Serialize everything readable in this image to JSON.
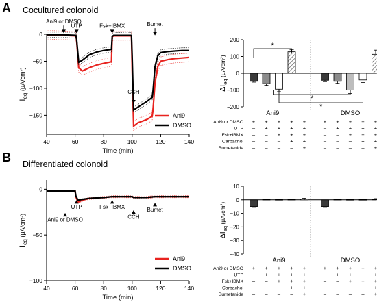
{
  "figure": {
    "panel_a_letter": "A",
    "panel_b_letter": "B",
    "panel_a_title": "Cocultured colonoid",
    "panel_b_title": "Differentiated colonoid",
    "condition_labels": [
      "Ani9 or DMSO",
      "UTP",
      "Fsk+IBMX",
      "Carbachol",
      "Bumetanide"
    ],
    "cond_matrix": [
      [
        "+",
        "+",
        "+",
        "+",
        "+",
        "",
        "+",
        "+",
        "+",
        "+",
        "+"
      ],
      [
        "–",
        "+",
        "+",
        "+",
        "+",
        "",
        "–",
        "+",
        "+",
        "+",
        "+"
      ],
      [
        "–",
        "–",
        "+",
        "+",
        "+",
        "",
        "–",
        "–",
        "+",
        "+",
        "+"
      ],
      [
        "–",
        "–",
        "–",
        "+",
        "+",
        "",
        "–",
        "–",
        "–",
        "+",
        "+"
      ],
      [
        "–",
        "–",
        "–",
        "–",
        "+",
        "",
        "–",
        "–",
        "–",
        "–",
        "+"
      ]
    ],
    "colors": {
      "ani9": "#e8231f",
      "dmso": "#000000",
      "bar_light_gray": "#bdbdbd",
      "bar_dark": "#3a3a3a"
    }
  },
  "chart_data": [
    {
      "id": "A_trace",
      "type": "line",
      "xlabel": "Time (min)",
      "ylabel_main": "I",
      "ylabel_sub": "eq",
      "ylabel_unit": "(μA/cm²)",
      "xlim": [
        40,
        140
      ],
      "ylim": [
        -185,
        0
      ],
      "x_ticks": [
        40,
        60,
        80,
        100,
        120,
        140
      ],
      "y_ticks": [
        0,
        -50,
        -100,
        -150
      ],
      "legend": [
        "Ani9",
        "DMSO"
      ],
      "legend_position": "bottom-right",
      "annotations": [
        {
          "text": "Ani9 or DMSO",
          "x": 52,
          "y_text": 20,
          "y_tip": 2
        },
        {
          "text": "UTP",
          "x": 61,
          "y_text": 12,
          "y_tip": 2
        },
        {
          "text": "Fsk+IBMX",
          "x": 86,
          "y_text": 12,
          "y_tip": 2
        },
        {
          "text": "CCH",
          "x": 101,
          "y_text": -110,
          "y_tip": -128
        },
        {
          "text": "Bumet",
          "x": 116,
          "y_text": 15,
          "y_tip": -2
        }
      ],
      "series": [
        {
          "name": "Ani9",
          "color": "#e8231f",
          "error": 8,
          "x": [
            40,
            52,
            60.5,
            61,
            62.5,
            65,
            70,
            75,
            80,
            85.5,
            86,
            87,
            90,
            95,
            99.5,
            100,
            101,
            104,
            110,
            114,
            114.6,
            116,
            118,
            120,
            125,
            130,
            135,
            140
          ],
          "y": [
            -1,
            -2,
            -3,
            -10,
            -62,
            -68,
            -62,
            -57,
            -54,
            -51,
            -5,
            -3,
            -3,
            -3,
            -3,
            -65,
            -170,
            -164,
            -158,
            -152,
            -140,
            -90,
            -60,
            -50,
            -47,
            -45,
            -44,
            -43
          ]
        },
        {
          "name": "DMSO",
          "color": "#000000",
          "error": 5,
          "x": [
            40,
            52,
            60.5,
            61,
            62.5,
            65,
            70,
            75,
            80,
            85.5,
            86,
            87,
            90,
            95,
            99.5,
            100,
            101,
            104,
            110,
            114,
            114.6,
            116,
            118,
            120,
            125,
            130,
            135,
            140
          ],
          "y": [
            -1,
            -1,
            -2,
            -8,
            -52,
            -48,
            -38,
            -33,
            -30,
            -28,
            -4,
            -2,
            -2,
            -2,
            -2,
            -40,
            -140,
            -135,
            -125,
            -117,
            -105,
            -60,
            -40,
            -34,
            -32,
            -31,
            -30,
            -30
          ]
        }
      ]
    },
    {
      "id": "A_bar",
      "type": "bar",
      "ylabel_main": "ΔI",
      "ylabel_sub": "eq",
      "ylabel_unit": "(μA/cm²)",
      "ylim": [
        -200,
        200
      ],
      "y_ticks": [
        200,
        100,
        0,
        -100,
        -200
      ],
      "group_labels": [
        "Ani9",
        "DMSO"
      ],
      "series": [
        {
          "name": "Ani9",
          "values": [
            -48,
            -62,
            -95,
            128
          ],
          "errors": [
            5,
            10,
            15,
            12
          ],
          "fills": [
            "dark",
            "gray",
            "white",
            "hatch"
          ]
        },
        {
          "name": "DMSO",
          "values": [
            -42,
            -48,
            -100,
            -40,
            113
          ],
          "errors": [
            8,
            12,
            20,
            15,
            25
          ],
          "fills": [
            "dark",
            "gray",
            "light",
            "white",
            "hatch"
          ]
        }
      ],
      "significance_marker": "*"
    },
    {
      "id": "B_trace",
      "type": "line",
      "xlabel": "Time (min)",
      "ylabel_main": "I",
      "ylabel_sub": "eq",
      "ylabel_unit": "(μA/cm²)",
      "xlim": [
        40,
        140
      ],
      "ylim": [
        -100,
        10
      ],
      "x_ticks": [
        40,
        60,
        80,
        100,
        120,
        140
      ],
      "y_ticks": [
        0,
        -50,
        -100
      ],
      "legend": [
        "Ani9",
        "DMSO"
      ],
      "legend_position": "bottom-right",
      "annotations": [
        {
          "text": "Ani9 or DMSO",
          "x": 53,
          "y_text": -33,
          "y_tip": -26
        },
        {
          "text": "UTP",
          "x": 61,
          "y_text": -19,
          "y_tip": -12
        },
        {
          "text": "Fsk+IBMX",
          "x": 86,
          "y_text": -19,
          "y_tip": -12
        },
        {
          "text": "CCH",
          "x": 101,
          "y_text": -30,
          "y_tip": -23
        },
        {
          "text": "Bumet",
          "x": 116,
          "y_text": -22,
          "y_tip": -15
        }
      ],
      "series": [
        {
          "name": "Ani9",
          "color": "#e8231f",
          "error": 1.2,
          "x": [
            40,
            60,
            60.5,
            62,
            65,
            70,
            80,
            86,
            90,
            100,
            101,
            110,
            116,
            120,
            130,
            140
          ],
          "y": [
            -2,
            -2,
            -8,
            -14,
            -12,
            -10,
            -9,
            -8,
            -8,
            -8,
            -9,
            -9,
            -8,
            -8,
            -8,
            -8
          ]
        },
        {
          "name": "DMSO",
          "color": "#000000",
          "error": 0.6,
          "x": [
            40,
            60,
            60.5,
            62,
            65,
            70,
            80,
            86,
            90,
            100,
            101,
            110,
            116,
            120,
            130,
            140
          ],
          "y": [
            -2,
            -2,
            -7,
            -12,
            -11,
            -10,
            -9,
            -8,
            -8,
            -8,
            -9,
            -9,
            -8,
            -8,
            -8,
            -8
          ]
        }
      ]
    },
    {
      "id": "B_bar",
      "type": "bar",
      "ylabel_main": "ΔI",
      "ylabel_sub": "eq",
      "ylabel_unit": "(μA/cm²)",
      "ylim": [
        -40,
        10
      ],
      "y_ticks": [
        10,
        0,
        -10,
        -20,
        -30,
        -40
      ],
      "group_labels": [
        "Ani9",
        "DMSO"
      ],
      "series": [
        {
          "name": "Ani9",
          "values": [
            -5,
            0.3,
            0.2,
            0.3,
            0.6
          ],
          "errors": [
            0.6,
            0.3,
            0.3,
            0.3,
            0.6
          ],
          "fills": [
            "dark",
            "gray",
            "light",
            "white",
            "hatch"
          ]
        },
        {
          "name": "DMSO",
          "values": [
            -5,
            0.3,
            0.2,
            0.2,
            0.4
          ],
          "errors": [
            0.6,
            0.3,
            0.3,
            0.3,
            0.5
          ],
          "fills": [
            "dark",
            "gray",
            "light",
            "white",
            "hatch"
          ]
        }
      ]
    }
  ]
}
